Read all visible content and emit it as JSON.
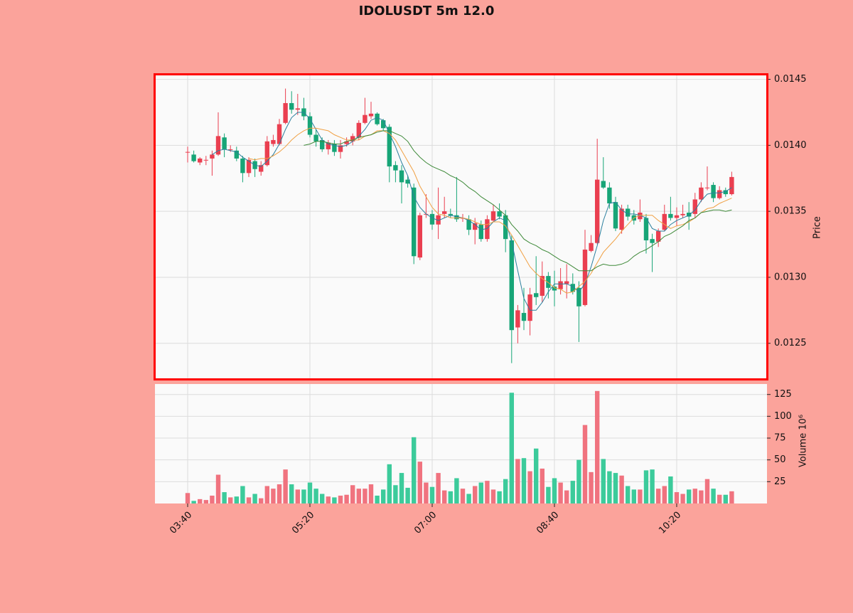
{
  "chart_data": [
    {
      "type": "candlestick",
      "title": "IDOLUSDT 5m 12.0",
      "ylabel": "Price",
      "up_color": "#ea3f50",
      "down_color": "#17a577",
      "grid": true,
      "x": [
        "03:40",
        "03:45",
        "03:50",
        "03:55",
        "04:00",
        "04:05",
        "04:10",
        "04:15",
        "04:20",
        "04:25",
        "04:30",
        "04:35",
        "04:40",
        "04:45",
        "04:50",
        "04:55",
        "05:00",
        "05:05",
        "05:10",
        "05:15",
        "05:20",
        "05:25",
        "05:30",
        "05:35",
        "05:40",
        "05:45",
        "05:50",
        "05:55",
        "06:00",
        "06:05",
        "06:10",
        "06:15",
        "06:20",
        "06:25",
        "06:30",
        "06:35",
        "06:40",
        "06:45",
        "06:50",
        "06:55",
        "07:00",
        "07:05",
        "07:10",
        "07:15",
        "07:20",
        "07:25",
        "07:30",
        "07:35",
        "07:40",
        "07:45",
        "07:50",
        "07:55",
        "08:00",
        "08:05",
        "08:10",
        "08:15",
        "08:20",
        "08:25",
        "08:30",
        "08:35",
        "08:40",
        "08:45",
        "08:50",
        "08:55",
        "09:00",
        "09:05",
        "09:10",
        "09:15",
        "09:20",
        "09:25",
        "09:30",
        "09:35",
        "09:40",
        "09:45",
        "09:50",
        "09:55",
        "10:00",
        "10:05",
        "10:10",
        "10:15",
        "10:20",
        "10:25",
        "10:30",
        "10:35",
        "10:40",
        "10:45",
        "10:50",
        "10:55",
        "11:00",
        "11:05"
      ],
      "open": [
        0.01395,
        0.01393,
        0.01387,
        0.01389,
        0.0139,
        0.01393,
        0.01406,
        0.01397,
        0.01396,
        0.0139,
        0.01379,
        0.01388,
        0.0138,
        0.01385,
        0.01401,
        0.01401,
        0.01417,
        0.01432,
        0.01427,
        0.01428,
        0.01422,
        0.01408,
        0.01404,
        0.01397,
        0.01401,
        0.01395,
        0.01401,
        0.01403,
        0.01406,
        0.01417,
        0.01422,
        0.01424,
        0.01419,
        0.01414,
        0.01385,
        0.01381,
        0.01374,
        0.01368,
        0.01315,
        0.01348,
        0.01348,
        0.0134,
        0.01348,
        0.01348,
        0.01347,
        0.01345,
        0.01344,
        0.01336,
        0.0134,
        0.01329,
        0.01343,
        0.0135,
        0.01347,
        0.01328,
        0.01262,
        0.01273,
        0.01267,
        0.01288,
        0.01286,
        0.01301,
        0.01293,
        0.01291,
        0.01295,
        0.01295,
        0.01292,
        0.01279,
        0.0132,
        0.01326,
        0.01373,
        0.01368,
        0.01357,
        0.01336,
        0.01352,
        0.01347,
        0.01344,
        0.01345,
        0.01329,
        0.01327,
        0.01336,
        0.01348,
        0.01345,
        0.01347,
        0.01349,
        0.01348,
        0.01359,
        0.01368,
        0.0137,
        0.0136,
        0.01366,
        0.01363
      ],
      "high": [
        0.01399,
        0.01396,
        0.01391,
        0.01392,
        0.01396,
        0.01425,
        0.01409,
        0.014,
        0.01399,
        0.01392,
        0.01391,
        0.0139,
        0.01388,
        0.01407,
        0.01408,
        0.0142,
        0.01443,
        0.01441,
        0.01439,
        0.01436,
        0.01425,
        0.01412,
        0.01406,
        0.01404,
        0.01404,
        0.01404,
        0.01406,
        0.01409,
        0.01419,
        0.01436,
        0.01433,
        0.01425,
        0.0142,
        0.01416,
        0.01388,
        0.01385,
        0.01377,
        0.01371,
        0.01349,
        0.01363,
        0.01351,
        0.01368,
        0.01361,
        0.01352,
        0.01376,
        0.01348,
        0.01347,
        0.01345,
        0.01343,
        0.01347,
        0.01355,
        0.01356,
        0.01351,
        0.01332,
        0.01279,
        0.01292,
        0.01292,
        0.01316,
        0.01312,
        0.01304,
        0.01305,
        0.01307,
        0.0131,
        0.01303,
        0.01297,
        0.01336,
        0.01332,
        0.01405,
        0.01391,
        0.01372,
        0.01361,
        0.01355,
        0.01355,
        0.01351,
        0.01359,
        0.01348,
        0.01333,
        0.01337,
        0.01355,
        0.01361,
        0.01353,
        0.01355,
        0.01357,
        0.01364,
        0.01372,
        0.01384,
        0.01372,
        0.01369,
        0.01368,
        0.0138
      ],
      "low": [
        0.01387,
        0.01387,
        0.01385,
        0.01385,
        0.01377,
        0.01392,
        0.01391,
        0.01395,
        0.01388,
        0.01372,
        0.01376,
        0.01376,
        0.01377,
        0.01384,
        0.01399,
        0.014,
        0.01416,
        0.01424,
        0.01423,
        0.01419,
        0.01406,
        0.01399,
        0.01395,
        0.01393,
        0.01392,
        0.0139,
        0.01399,
        0.014,
        0.01404,
        0.01416,
        0.0142,
        0.01415,
        0.01411,
        0.01372,
        0.01372,
        0.01356,
        0.01368,
        0.0131,
        0.01313,
        0.01345,
        0.01336,
        0.01329,
        0.01345,
        0.01345,
        0.01342,
        0.01342,
        0.01332,
        0.01325,
        0.01327,
        0.01327,
        0.01342,
        0.01344,
        0.01319,
        0.01235,
        0.0125,
        0.0126,
        0.01256,
        0.01279,
        0.01281,
        0.01284,
        0.01278,
        0.01287,
        0.01284,
        0.01287,
        0.01251,
        0.01278,
        0.01319,
        0.01325,
        0.01367,
        0.01352,
        0.01335,
        0.01333,
        0.01343,
        0.0134,
        0.01342,
        0.01318,
        0.01304,
        0.01323,
        0.01335,
        0.01343,
        0.01339,
        0.01345,
        0.01336,
        0.01345,
        0.01357,
        0.01366,
        0.01357,
        0.01359,
        0.01361,
        0.01362
      ],
      "close": [
        0.01395,
        0.01388,
        0.0139,
        0.01389,
        0.01393,
        0.01407,
        0.01397,
        0.01397,
        0.0139,
        0.01379,
        0.01389,
        0.01382,
        0.01385,
        0.01403,
        0.01404,
        0.01416,
        0.01432,
        0.01427,
        0.01428,
        0.01422,
        0.01408,
        0.01403,
        0.01397,
        0.01402,
        0.01395,
        0.014,
        0.01403,
        0.01407,
        0.01417,
        0.01423,
        0.01424,
        0.01416,
        0.01413,
        0.01384,
        0.01381,
        0.01372,
        0.01371,
        0.01316,
        0.01347,
        0.01348,
        0.0134,
        0.01347,
        0.0135,
        0.01347,
        0.01344,
        0.01345,
        0.01336,
        0.01341,
        0.01329,
        0.01344,
        0.0135,
        0.01346,
        0.01329,
        0.0126,
        0.01275,
        0.01267,
        0.01287,
        0.01285,
        0.01301,
        0.01292,
        0.0129,
        0.01297,
        0.01297,
        0.01289,
        0.01278,
        0.01321,
        0.01326,
        0.01374,
        0.01368,
        0.01356,
        0.01337,
        0.01352,
        0.01346,
        0.01343,
        0.01349,
        0.01328,
        0.01326,
        0.01335,
        0.01348,
        0.01345,
        0.01347,
        0.01348,
        0.01346,
        0.01359,
        0.01368,
        0.01368,
        0.0136,
        0.01366,
        0.01363,
        0.01376
      ],
      "series": [
        {
          "color": "#2b7f9e",
          "values": [
            null,
            null,
            null,
            null,
            0.01393,
            0.01396,
            0.01397,
            0.01396,
            0.01395,
            0.01391,
            0.01388,
            0.01385,
            0.01384,
            0.01388,
            0.01393,
            0.01401,
            0.01412,
            0.01421,
            0.01425,
            0.01425,
            0.0142,
            0.01412,
            0.01404,
            0.01401,
            0.014,
            0.01399,
            0.014,
            0.01403,
            0.01407,
            0.01412,
            0.01419,
            0.01421,
            0.01419,
            0.01409,
            0.01399,
            0.01387,
            0.01377,
            0.01361,
            0.01353,
            0.01348,
            0.01345,
            0.01343,
            0.01345,
            0.01347,
            0.01346,
            0.01345,
            0.01343,
            0.0134,
            0.01336,
            0.01337,
            0.01342,
            0.01345,
            0.01343,
            0.01327,
            0.01305,
            0.01284,
            0.01275,
            0.01275,
            0.01281,
            0.01289,
            0.01295,
            0.01295,
            0.01295,
            0.01293,
            0.01289,
            0.01295,
            0.01308,
            0.01324,
            0.01343,
            0.01356,
            0.01357,
            0.01351,
            0.01348,
            0.01348,
            0.01347,
            0.01345,
            0.01337,
            0.01335,
            0.01335,
            0.0134,
            0.01343,
            0.01345,
            0.01347,
            0.01351,
            0.01358,
            0.01363,
            0.01364,
            0.01364,
            0.01365,
            0.01368
          ]
        },
        {
          "color": "#f0a043",
          "values": [
            null,
            null,
            null,
            null,
            null,
            null,
            null,
            null,
            null,
            null,
            0.0139,
            0.01389,
            0.0139,
            0.0139,
            0.01392,
            0.01395,
            0.01399,
            0.01404,
            0.01408,
            0.01411,
            0.01413,
            0.01413,
            0.01412,
            0.01411,
            0.01408,
            0.01406,
            0.01404,
            0.01404,
            0.01404,
            0.01407,
            0.01408,
            0.01411,
            0.01411,
            0.01409,
            0.01404,
            0.01396,
            0.01388,
            0.0138,
            0.01369,
            0.01361,
            0.01353,
            0.01348,
            0.01347,
            0.01345,
            0.01345,
            0.01345,
            0.01344,
            0.01342,
            0.0134,
            0.0134,
            0.01342,
            0.01342,
            0.01339,
            0.01332,
            0.01324,
            0.01316,
            0.01308,
            0.01303,
            0.01299,
            0.01296,
            0.01292,
            0.01291,
            0.01288,
            0.01289,
            0.01293,
            0.01297,
            0.01303,
            0.01311,
            0.01319,
            0.01324,
            0.01329,
            0.01335,
            0.0134,
            0.01345,
            0.01347,
            0.01347,
            0.01347,
            0.01343,
            0.0134,
            0.01337,
            0.01339,
            0.0134,
            0.01342,
            0.01345,
            0.01349,
            0.01352,
            0.01353,
            0.01356,
            0.01358,
            0.0136
          ]
        },
        {
          "color": "#3f8a3a",
          "values": [
            null,
            null,
            null,
            null,
            null,
            null,
            null,
            null,
            null,
            null,
            null,
            null,
            null,
            null,
            null,
            null,
            null,
            null,
            null,
            0.014,
            0.01401,
            0.01403,
            0.01403,
            0.01402,
            0.01401,
            0.01401,
            0.01403,
            0.01404,
            0.01406,
            0.01407,
            0.01408,
            0.0141,
            0.01411,
            0.01411,
            0.01409,
            0.01407,
            0.01403,
            0.01396,
            0.01391,
            0.01387,
            0.01384,
            0.01382,
            0.0138,
            0.01377,
            0.01375,
            0.01372,
            0.01368,
            0.01365,
            0.01361,
            0.01358,
            0.01355,
            0.01351,
            0.01347,
            0.0134,
            0.01335,
            0.01329,
            0.01326,
            0.01324,
            0.01321,
            0.01319,
            0.01316,
            0.01313,
            0.01311,
            0.01308,
            0.01305,
            0.01305,
            0.01305,
            0.01308,
            0.0131,
            0.01309,
            0.01309,
            0.0131,
            0.01312,
            0.01316,
            0.01319,
            0.01321,
            0.01324,
            0.01327,
            0.01331,
            0.01333,
            0.01336,
            0.01339,
            0.01343,
            0.01345,
            0.01349,
            0.0135,
            0.01351,
            0.01351,
            0.0135,
            0.01351
          ]
        }
      ],
      "ylim": [
        0.01224,
        0.01453
      ],
      "yticks": [
        0.0125,
        {
          "value": 0.013,
          "label": "0.0130"
        },
        0.0135,
        {
          "value": 0.014,
          "label": "0.0140"
        },
        0.0145
      ]
    },
    {
      "type": "bar",
      "ylabel": "Volume  10⁶",
      "up_color": "#f0737f",
      "down_color": "#3ccb9b",
      "grid": true,
      "values": [
        12,
        3,
        5,
        4,
        9,
        33,
        13,
        7,
        8,
        20,
        7,
        11,
        6,
        20,
        17,
        22,
        39,
        22,
        16,
        16,
        24,
        17,
        11,
        8,
        7,
        9,
        10,
        21,
        17,
        17,
        22,
        9,
        16,
        45,
        21,
        35,
        18,
        76,
        48,
        24,
        19,
        35,
        15,
        14,
        29,
        17,
        11,
        20,
        24,
        26,
        16,
        14,
        28,
        127,
        51,
        52,
        37,
        63,
        40,
        19,
        29,
        24,
        15,
        26,
        50,
        90,
        36,
        129,
        51,
        37,
        35,
        32,
        20,
        16,
        16,
        38,
        39,
        17,
        20,
        31,
        13,
        11,
        16,
        17,
        15,
        28,
        17,
        10,
        10,
        14
      ],
      "ylim": [
        0,
        137
      ],
      "yticks": [
        25,
        50,
        75,
        100,
        125
      ],
      "xticks": [
        "03:40",
        "05:20",
        "07:00",
        "08:40",
        "10:20"
      ]
    }
  ]
}
